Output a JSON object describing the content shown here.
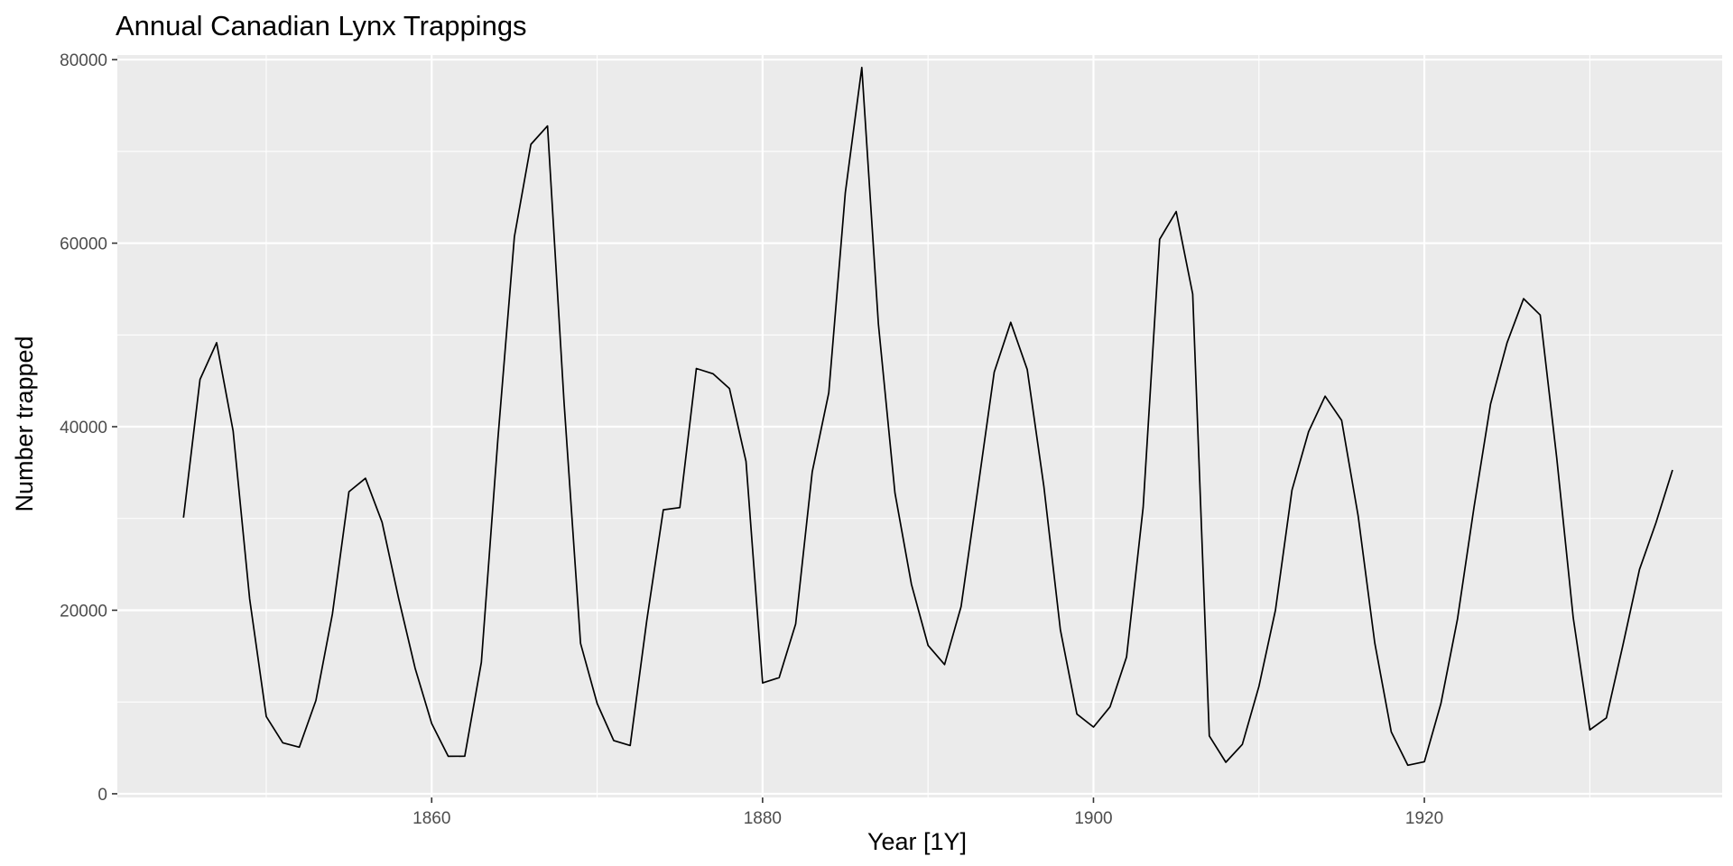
{
  "chart_data": {
    "type": "line",
    "title": "Annual Canadian Lynx Trappings",
    "xlabel": "Year [1Y]",
    "ylabel": "Number trapped",
    "xlim": [
      1841,
      1938
    ],
    "ylim": [
      -400,
      80500
    ],
    "x_ticks": [
      1860,
      1880,
      1900,
      1920
    ],
    "y_ticks": [
      0,
      20000,
      40000,
      60000,
      80000
    ],
    "x_tick_labels": [
      "1860",
      "1880",
      "1900",
      "1920"
    ],
    "y_tick_labels": [
      "0",
      "20000",
      "40000",
      "60000",
      "80000"
    ],
    "grid": true,
    "background": "#ebebeb",
    "grid_color": "#ffffff",
    "line_color": "#000000",
    "series": [
      {
        "x": [
          1845,
          1846,
          1847,
          1848,
          1849,
          1850,
          1851,
          1852,
          1853,
          1854,
          1855,
          1856,
          1857,
          1858,
          1859,
          1860,
          1861,
          1862,
          1863,
          1864,
          1865,
          1866,
          1867,
          1868,
          1869,
          1870,
          1871,
          1872,
          1873,
          1874,
          1875,
          1876,
          1877,
          1878,
          1879,
          1880,
          1881,
          1882,
          1883,
          1884,
          1885,
          1886,
          1887,
          1888,
          1889,
          1890,
          1891,
          1892,
          1893,
          1894,
          1895,
          1896,
          1897,
          1898,
          1899,
          1900,
          1901,
          1902,
          1903,
          1904,
          1905,
          1906,
          1907,
          1908,
          1909,
          1910,
          1911,
          1912,
          1913,
          1914,
          1915,
          1916,
          1917,
          1918,
          1919,
          1920,
          1921,
          1922,
          1923,
          1924,
          1925,
          1926,
          1927,
          1928,
          1929,
          1930,
          1931,
          1932,
          1933,
          1934,
          1935
        ],
        "values": [
          30090,
          45150,
          49150,
          39520,
          21230,
          8420,
          5560,
          5080,
          10170,
          19600,
          32910,
          34380,
          29590,
          21300,
          13690,
          7650,
          4080,
          4090,
          14330,
          38640,
          60700,
          70770,
          72770,
          42680,
          16390,
          9830,
          5800,
          5260,
          18910,
          30950,
          31180,
          46340,
          45770,
          44150,
          36230,
          12070,
          12650,
          18490,
          35100,
          43700,
          65470,
          79140,
          51170,
          32800,
          22820,
          16170,
          14080,
          20400,
          33120,
          45950,
          51370,
          46220,
          33490,
          17860,
          8680,
          7270,
          9470,
          14910,
          31210,
          60420,
          63450,
          54450,
          6300,
          3430,
          5380,
          11710,
          20020,
          33090,
          39460,
          43320,
          40690,
          30280,
          16440,
          6740,
          3110,
          3490,
          9830,
          19000,
          31240,
          42470,
          49150,
          53950,
          52170,
          36610,
          19170,
          6960,
          8270,
          16180,
          24440,
          29540,
          35280
        ]
      }
    ]
  }
}
